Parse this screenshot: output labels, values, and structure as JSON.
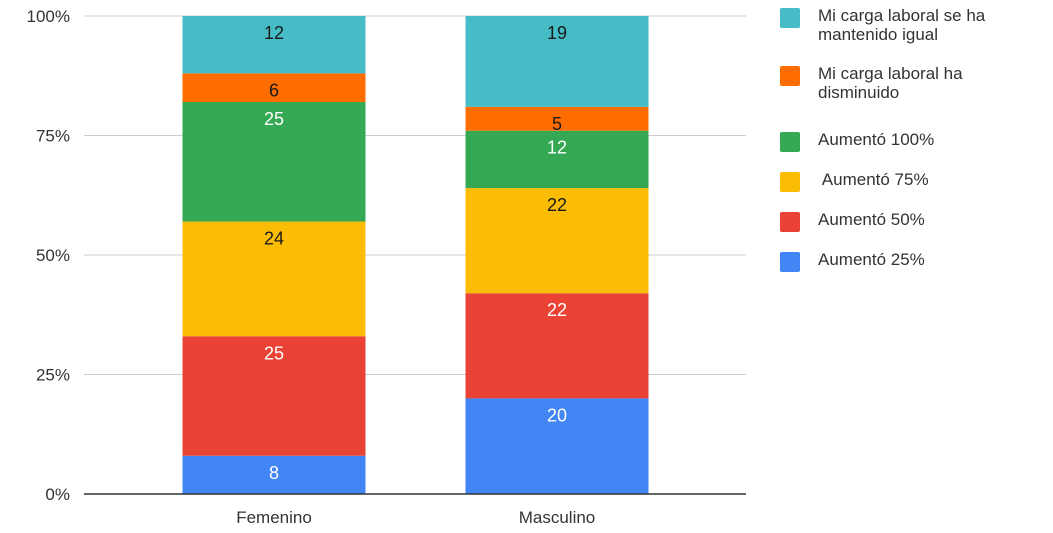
{
  "chart_data": {
    "type": "bar",
    "stacked": true,
    "normalized": true,
    "categories": [
      "Femenino",
      "Masculino"
    ],
    "series": [
      {
        "name": "Aumentó 25%",
        "color": "#4285f4",
        "values": [
          8,
          20
        ]
      },
      {
        "name": "Aumentó 50%",
        "color": "#ea4335",
        "values": [
          25,
          22
        ]
      },
      {
        "name": " Aumentó 75%",
        "color": "#fbbc04",
        "values": [
          24,
          22
        ]
      },
      {
        "name": "Aumentó 100%",
        "color": "#34a853",
        "values": [
          25,
          12
        ]
      },
      {
        "name": "Mi carga laboral ha disminuido",
        "color": "#ff6d01",
        "values": [
          6,
          5
        ]
      },
      {
        "name": "Mi carga laboral se ha mantenido igual",
        "color": "#46bdc6",
        "values": [
          12,
          19
        ]
      }
    ],
    "y_ticks": [
      "0%",
      "25%",
      "50%",
      "75%",
      "100%"
    ],
    "ylim": [
      0,
      100
    ],
    "grid": true,
    "legend_position": "right"
  },
  "legend": {
    "items": [
      {
        "lines": [
          "Mi carga laboral se ha",
          "mantenido igual"
        ],
        "color": "#46bdc6"
      },
      {
        "lines": [
          "Mi carga laboral ha",
          "disminuido"
        ],
        "color": "#ff6d01"
      },
      {
        "lines": [
          "Aumentó 100%"
        ],
        "color": "#34a853"
      },
      {
        "lines": [
          " Aumentó 75%"
        ],
        "color": "#fbbc04"
      },
      {
        "lines": [
          "Aumentó 50%"
        ],
        "color": "#ea4335"
      },
      {
        "lines": [
          "Aumentó 25%"
        ],
        "color": "#4285f4"
      }
    ]
  }
}
